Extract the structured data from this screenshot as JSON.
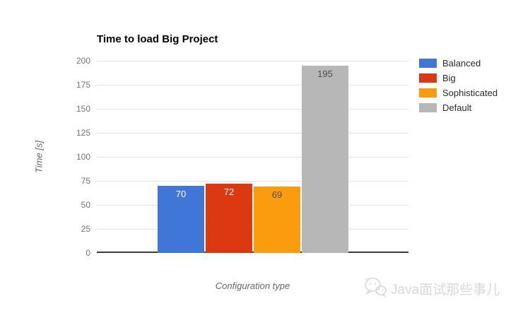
{
  "chart_data": {
    "type": "bar",
    "title": "Time to load Big Project",
    "xlabel": "Configuration type",
    "ylabel": "Time [s]",
    "categories": [
      "Balanced",
      "Big",
      "Sophisticated",
      "Default"
    ],
    "values": [
      70,
      72,
      69,
      195
    ],
    "value_labels": [
      "70",
      "72",
      "69",
      "195"
    ],
    "bar_colors": [
      "#4176d9",
      "#dc3912",
      "#fb9b0e",
      "#b7b7b7"
    ],
    "value_label_colors": [
      "#ffffff",
      "#ffffff",
      "#4d4d4d",
      "#4d4d4d"
    ],
    "ylim": [
      0,
      200
    ],
    "yticks": [
      0,
      25,
      50,
      75,
      100,
      125,
      150,
      175,
      200
    ],
    "grid": true,
    "legend_position": "right",
    "legend": [
      {
        "label": "Balanced",
        "color": "#4176d9"
      },
      {
        "label": "Big",
        "color": "#dc3912"
      },
      {
        "label": "Sophisticated",
        "color": "#fb9b0e"
      },
      {
        "label": "Default",
        "color": "#b7b7b7"
      }
    ]
  },
  "watermark": {
    "icon": "wechat-icon",
    "text": "Java面试那些事儿"
  }
}
